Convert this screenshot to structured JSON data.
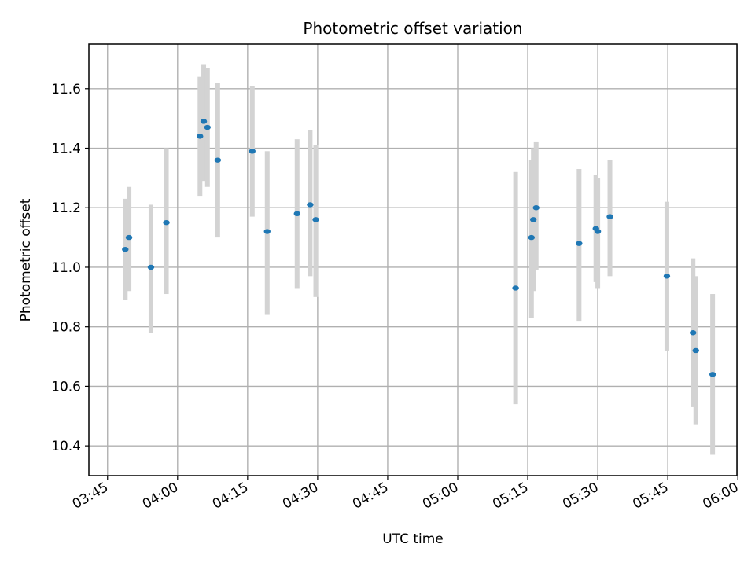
{
  "chart_data": {
    "type": "scatter",
    "title": "Photometric offset variation",
    "xlabel": "UTC time",
    "ylabel": "Photometric offset",
    "x_axis_kind": "time (HH:MM UTC)",
    "xlim": [
      "03:41",
      "05:59.8"
    ],
    "ylim": [
      10.3,
      11.75
    ],
    "x_ticks": [
      "03:45",
      "04:00",
      "04:15",
      "04:30",
      "04:45",
      "05:00",
      "05:15",
      "05:30",
      "05:45",
      "06:00"
    ],
    "y_ticks": [
      10.4,
      10.6,
      10.8,
      11.0,
      11.2,
      11.4,
      11.6
    ],
    "grid": true,
    "point_color": "#1f77b4",
    "errorbar_color": "#d3d3d3",
    "points": [
      {
        "x": "03:48.8",
        "y": 11.06,
        "ylow": 10.89,
        "yhigh": 11.23
      },
      {
        "x": "03:49.6",
        "y": 11.1,
        "ylow": 10.92,
        "yhigh": 11.27
      },
      {
        "x": "03:54.3",
        "y": 11.0,
        "ylow": 10.78,
        "yhigh": 11.21
      },
      {
        "x": "03:57.6",
        "y": 11.15,
        "ylow": 10.91,
        "yhigh": 11.4
      },
      {
        "x": "04:04.8",
        "y": 11.44,
        "ylow": 11.24,
        "yhigh": 11.64
      },
      {
        "x": "04:05.6",
        "y": 11.49,
        "ylow": 11.29,
        "yhigh": 11.68
      },
      {
        "x": "04:06.4",
        "y": 11.47,
        "ylow": 11.27,
        "yhigh": 11.67
      },
      {
        "x": "04:08.6",
        "y": 11.36,
        "ylow": 11.1,
        "yhigh": 11.62
      },
      {
        "x": "04:16.0",
        "y": 11.39,
        "ylow": 11.17,
        "yhigh": 11.61
      },
      {
        "x": "04:19.2",
        "y": 11.12,
        "ylow": 10.84,
        "yhigh": 11.39
      },
      {
        "x": "04:25.6",
        "y": 11.18,
        "ylow": 10.93,
        "yhigh": 11.43
      },
      {
        "x": "04:28.4",
        "y": 11.21,
        "ylow": 10.97,
        "yhigh": 11.46
      },
      {
        "x": "04:29.6",
        "y": 11.16,
        "ylow": 10.9,
        "yhigh": 11.41
      },
      {
        "x": "05:12.4",
        "y": 10.93,
        "ylow": 10.54,
        "yhigh": 11.32
      },
      {
        "x": "05:15.8",
        "y": 11.1,
        "ylow": 10.83,
        "yhigh": 11.36
      },
      {
        "x": "05:16.2",
        "y": 11.16,
        "ylow": 10.92,
        "yhigh": 11.4
      },
      {
        "x": "05:16.8",
        "y": 11.2,
        "ylow": 10.99,
        "yhigh": 11.42
      },
      {
        "x": "05:26.0",
        "y": 11.08,
        "ylow": 10.82,
        "yhigh": 11.33
      },
      {
        "x": "05:29.6",
        "y": 11.13,
        "ylow": 10.95,
        "yhigh": 11.31
      },
      {
        "x": "05:30.0",
        "y": 11.12,
        "ylow": 10.93,
        "yhigh": 11.3
      },
      {
        "x": "05:32.6",
        "y": 11.17,
        "ylow": 10.97,
        "yhigh": 11.36
      },
      {
        "x": "05:44.8",
        "y": 10.97,
        "ylow": 10.72,
        "yhigh": 11.22
      },
      {
        "x": "05:50.4",
        "y": 10.78,
        "ylow": 10.53,
        "yhigh": 11.03
      },
      {
        "x": "05:51.0",
        "y": 10.72,
        "ylow": 10.47,
        "yhigh": 10.97
      },
      {
        "x": "05:54.6",
        "y": 10.64,
        "ylow": 10.37,
        "yhigh": 10.91
      }
    ]
  }
}
